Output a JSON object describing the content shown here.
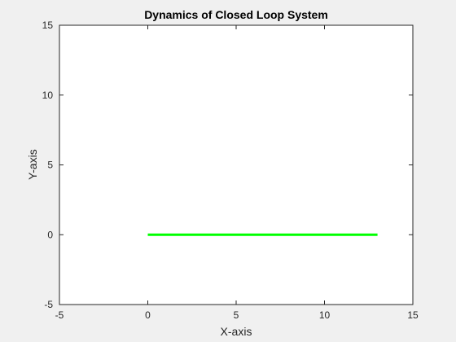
{
  "chart_data": {
    "type": "line",
    "title": "Dynamics of Closed Loop System",
    "xlabel": "X-axis",
    "ylabel": "Y-axis",
    "xlim": [
      -5,
      15
    ],
    "ylim": [
      -5,
      15
    ],
    "xticks": [
      -5,
      0,
      5,
      10,
      15
    ],
    "yticks": [
      -5,
      0,
      5,
      10,
      15
    ],
    "xtick_labels": [
      "-5",
      "0",
      "5",
      "10",
      "15"
    ],
    "ytick_labels": [
      "-5",
      "0",
      "5",
      "10",
      "15"
    ],
    "grid": false,
    "legend": "none",
    "series": [
      {
        "color": "#00ff00",
        "x": [
          0,
          13
        ],
        "y": [
          0,
          0
        ]
      }
    ]
  },
  "colors": {
    "figure_background": "#f0f0f0",
    "axes_background": "#ffffff",
    "axes_edge": "#262626",
    "text": "#262626",
    "line": "#00ff00"
  }
}
